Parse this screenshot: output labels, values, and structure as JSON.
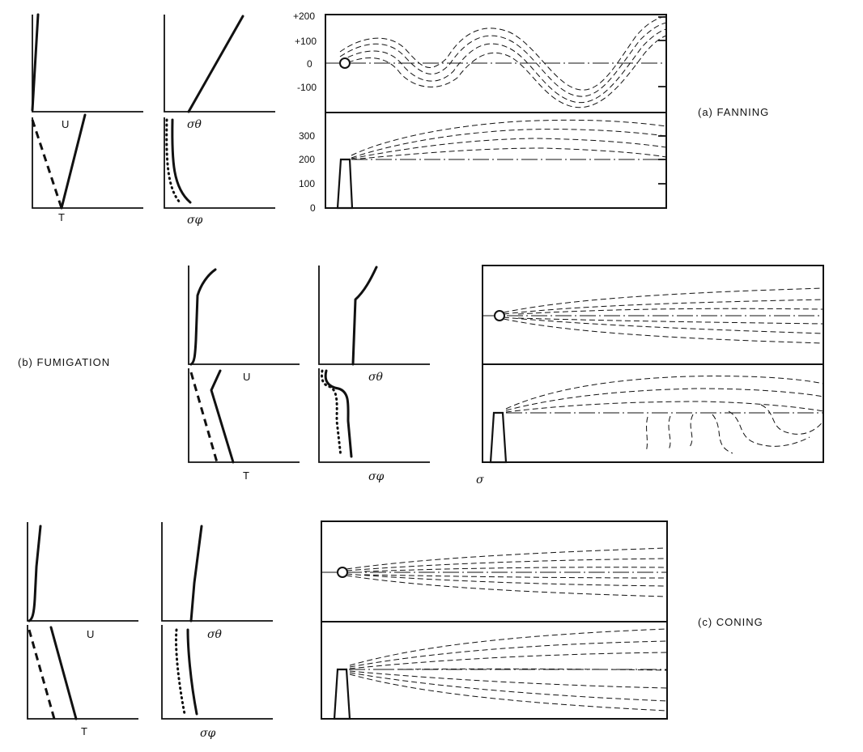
{
  "cases": [
    {
      "id": "a",
      "label": "(a)  FANNING",
      "profile_labels": {
        "u": "U",
        "t": "T",
        "sigma_theta": "σθ",
        "sigma_phi": "σφ"
      },
      "plan_ticks": [
        "+200",
        "+100",
        "0",
        "-100"
      ],
      "elev_ticks": [
        "300",
        "200",
        "100",
        "0"
      ]
    },
    {
      "id": "b",
      "label": "(b)  FUMIGATION",
      "profile_labels": {
        "u": "U",
        "t": "T",
        "sigma_theta": "σθ",
        "sigma_phi": "σφ"
      },
      "extra_label": "σ"
    },
    {
      "id": "c",
      "label": "(c)  CONING",
      "profile_labels": {
        "u": "U",
        "t": "T",
        "sigma_theta": "σθ",
        "sigma_phi": "σφ"
      }
    }
  ]
}
